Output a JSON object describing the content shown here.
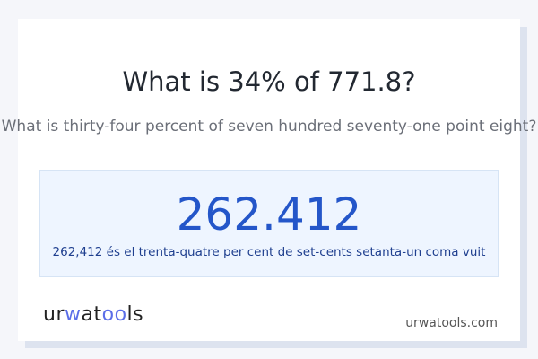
{
  "question": "What is 34% of 771.8?",
  "question_words": "What is thirty-four percent of seven hundred seventy-one point eight?",
  "answer": "262.412",
  "answer_words": "262,412 és el trenta-quatre per cent de set-cents setanta-un coma vuit",
  "logo": "urwatools",
  "site": "urwatools.com",
  "colors": {
    "accent": "#2456c9",
    "box": "#eef5ff"
  }
}
